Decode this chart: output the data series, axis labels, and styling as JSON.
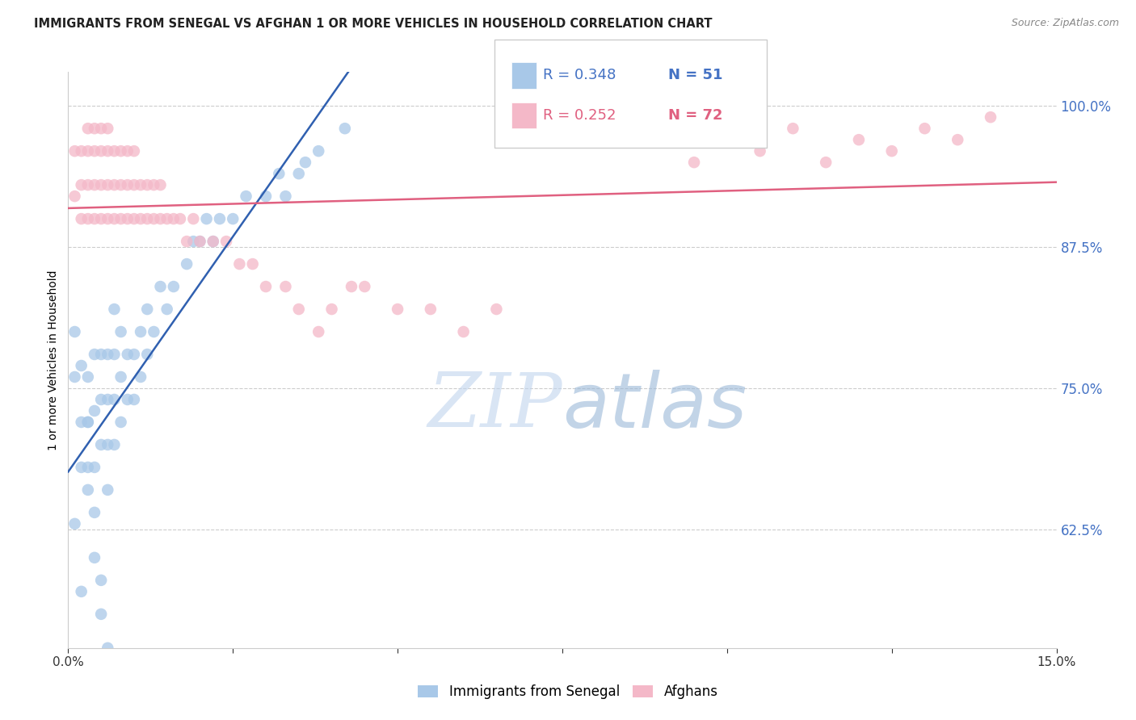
{
  "title": "IMMIGRANTS FROM SENEGAL VS AFGHAN 1 OR MORE VEHICLES IN HOUSEHOLD CORRELATION CHART",
  "source": "Source: ZipAtlas.com",
  "ylabel": "1 or more Vehicles in Household",
  "ytick_values": [
    1.0,
    0.875,
    0.75,
    0.625
  ],
  "xlim": [
    0.0,
    0.15
  ],
  "ylim": [
    0.52,
    1.03
  ],
  "legend_blue_label": "Immigrants from Senegal",
  "legend_pink_label": "Afghans",
  "R_blue": 0.348,
  "N_blue": 51,
  "R_pink": 0.252,
  "N_pink": 72,
  "watermark_zip": "ZIP",
  "watermark_atlas": "atlas",
  "blue_color": "#a8c8e8",
  "pink_color": "#f4b8c8",
  "blue_line_color": "#3060b0",
  "pink_line_color": "#e06080",
  "blue_x": [
    0.001,
    0.001,
    0.002,
    0.002,
    0.003,
    0.003,
    0.003,
    0.004,
    0.004,
    0.004,
    0.005,
    0.005,
    0.005,
    0.006,
    0.006,
    0.006,
    0.006,
    0.007,
    0.007,
    0.007,
    0.007,
    0.008,
    0.008,
    0.008,
    0.009,
    0.009,
    0.01,
    0.01,
    0.011,
    0.011,
    0.012,
    0.012,
    0.013,
    0.014,
    0.015,
    0.016,
    0.018,
    0.019,
    0.02,
    0.021,
    0.022,
    0.023,
    0.025,
    0.027,
    0.03,
    0.032,
    0.033,
    0.035,
    0.036,
    0.038,
    0.042
  ],
  "blue_y": [
    0.76,
    0.8,
    0.72,
    0.77,
    0.68,
    0.72,
    0.76,
    0.68,
    0.73,
    0.78,
    0.7,
    0.74,
    0.78,
    0.66,
    0.7,
    0.74,
    0.78,
    0.7,
    0.74,
    0.78,
    0.82,
    0.72,
    0.76,
    0.8,
    0.74,
    0.78,
    0.74,
    0.78,
    0.76,
    0.8,
    0.78,
    0.82,
    0.8,
    0.84,
    0.82,
    0.84,
    0.86,
    0.88,
    0.88,
    0.9,
    0.88,
    0.9,
    0.9,
    0.92,
    0.92,
    0.94,
    0.92,
    0.94,
    0.95,
    0.96,
    0.98
  ],
  "blue_low_x": [
    0.001,
    0.002,
    0.002,
    0.003,
    0.003,
    0.004,
    0.004,
    0.005,
    0.005,
    0.006
  ],
  "blue_low_y": [
    0.63,
    0.68,
    0.57,
    0.66,
    0.72,
    0.6,
    0.64,
    0.55,
    0.58,
    0.52
  ],
  "pink_x": [
    0.001,
    0.001,
    0.002,
    0.002,
    0.002,
    0.003,
    0.003,
    0.003,
    0.003,
    0.004,
    0.004,
    0.004,
    0.004,
    0.005,
    0.005,
    0.005,
    0.005,
    0.006,
    0.006,
    0.006,
    0.006,
    0.007,
    0.007,
    0.007,
    0.008,
    0.008,
    0.008,
    0.009,
    0.009,
    0.009,
    0.01,
    0.01,
    0.01,
    0.011,
    0.011,
    0.012,
    0.012,
    0.013,
    0.013,
    0.014,
    0.014,
    0.015,
    0.016,
    0.017,
    0.018,
    0.019,
    0.02,
    0.022,
    0.024,
    0.026,
    0.028,
    0.03,
    0.033,
    0.035,
    0.038,
    0.04,
    0.043,
    0.045,
    0.05,
    0.055,
    0.06,
    0.065,
    0.095,
    0.1,
    0.105,
    0.11,
    0.115,
    0.12,
    0.125,
    0.13,
    0.135,
    0.14
  ],
  "pink_y": [
    0.92,
    0.96,
    0.9,
    0.93,
    0.96,
    0.9,
    0.93,
    0.96,
    0.98,
    0.9,
    0.93,
    0.96,
    0.98,
    0.9,
    0.93,
    0.96,
    0.98,
    0.9,
    0.93,
    0.96,
    0.98,
    0.9,
    0.93,
    0.96,
    0.9,
    0.93,
    0.96,
    0.9,
    0.93,
    0.96,
    0.9,
    0.93,
    0.96,
    0.9,
    0.93,
    0.9,
    0.93,
    0.9,
    0.93,
    0.9,
    0.93,
    0.9,
    0.9,
    0.9,
    0.88,
    0.9,
    0.88,
    0.88,
    0.88,
    0.86,
    0.86,
    0.84,
    0.84,
    0.82,
    0.8,
    0.82,
    0.84,
    0.84,
    0.82,
    0.82,
    0.8,
    0.82,
    0.95,
    0.97,
    0.96,
    0.98,
    0.95,
    0.97,
    0.96,
    0.98,
    0.97,
    0.99
  ]
}
